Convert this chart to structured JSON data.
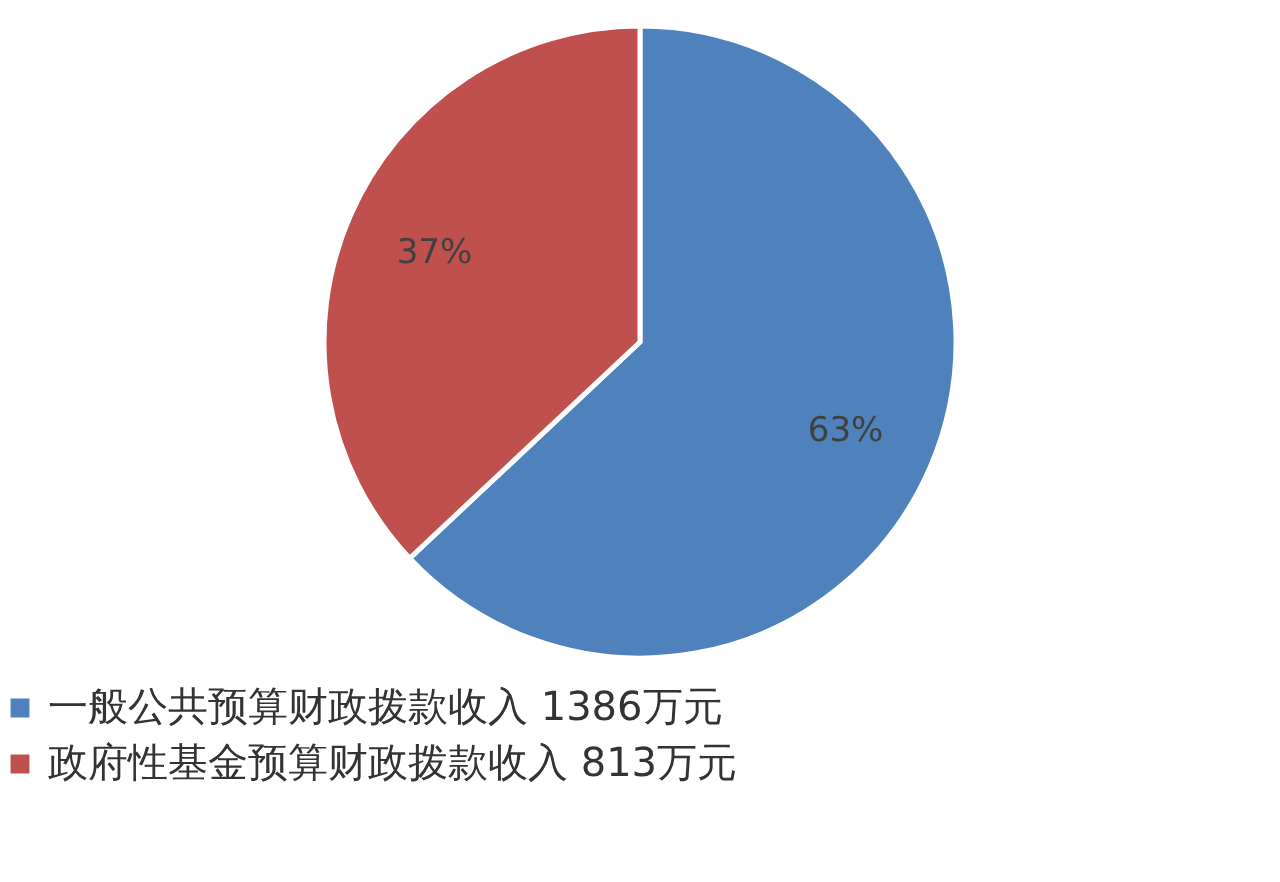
{
  "chart_data": {
    "type": "pie",
    "categories": [
      "一般公共预算财政拨款收入 1386万元",
      "政府性基金预算财政拨款收入 813万元"
    ],
    "values": [
      63,
      37
    ],
    "colors": [
      "#4f81bd",
      "#c0504d"
    ],
    "value_labels": [
      "63%",
      "37%"
    ],
    "legend": "bottom"
  }
}
